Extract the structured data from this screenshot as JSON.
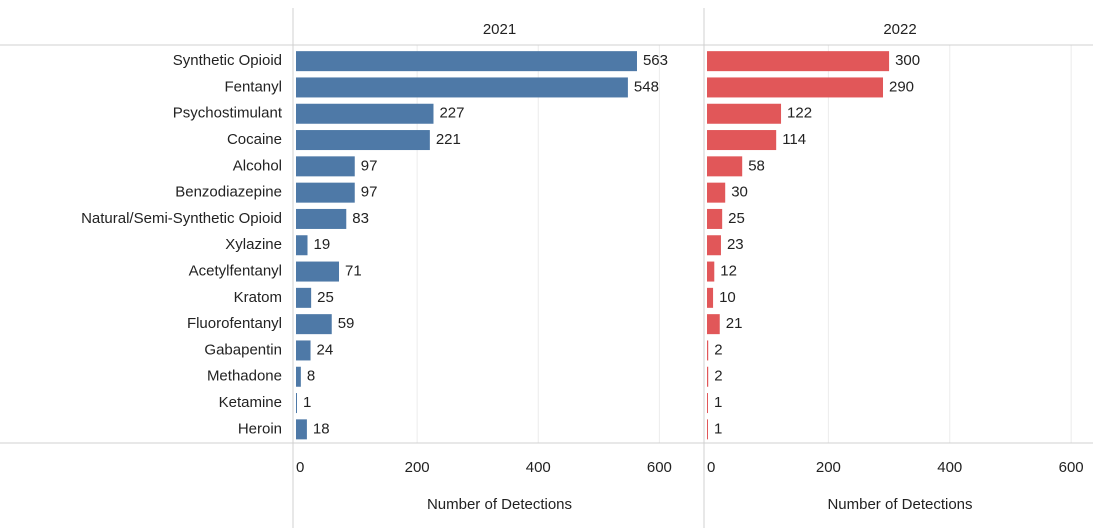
{
  "chart_data": [
    {
      "type": "bar",
      "title": "2021",
      "xlabel": "Number of Detections",
      "color": "#4e79a7",
      "categories": [
        "Synthetic Opioid",
        "Fentanyl",
        "Psychostimulant",
        "Cocaine",
        "Alcohol",
        "Benzodiazepine",
        "Natural/Semi-Synthetic Opioid",
        "Xylazine",
        "Acetylfentanyl",
        "Kratom",
        "Fluorofentanyl",
        "Gabapentin",
        "Methadone",
        "Ketamine",
        "Heroin"
      ],
      "values": [
        563,
        548,
        227,
        221,
        97,
        97,
        83,
        19,
        71,
        25,
        59,
        24,
        8,
        1,
        18
      ],
      "xlim": [
        0,
        672
      ],
      "xticks": [
        0,
        200,
        400,
        600
      ],
      "grid": true
    },
    {
      "type": "bar",
      "title": "2022",
      "xlabel": "Number of Detections",
      "color": "#e15759",
      "values": [
        300,
        290,
        122,
        114,
        58,
        30,
        25,
        23,
        12,
        10,
        21,
        2,
        2,
        1,
        1
      ],
      "xlim": [
        0,
        636
      ],
      "xticks": [
        0,
        200,
        400,
        600
      ],
      "grid": true
    }
  ]
}
